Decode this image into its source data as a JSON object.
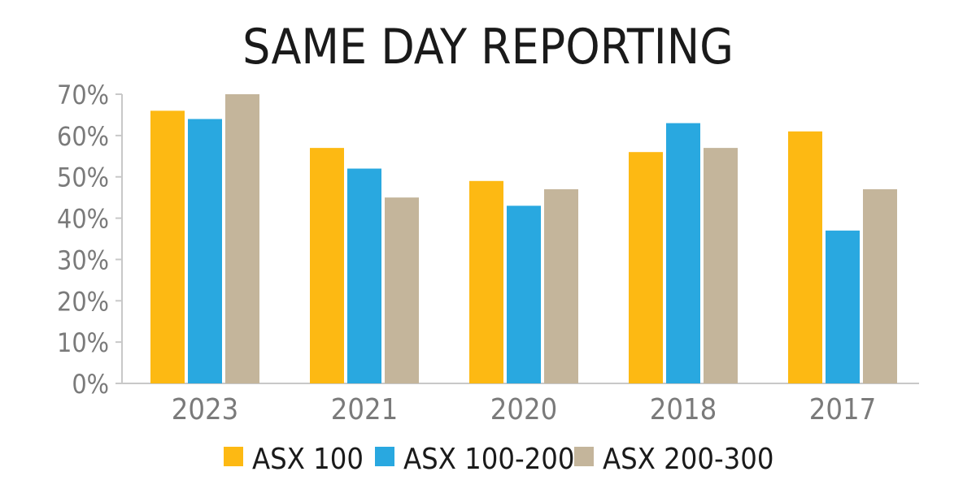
{
  "chart_data": {
    "type": "bar",
    "title": "SAME DAY REPORTING",
    "xlabel": "",
    "ylabel": "",
    "categories": [
      "2023",
      "2021",
      "2020",
      "2018",
      "2017"
    ],
    "series": [
      {
        "name": "ASX 100",
        "color": "#FDB913",
        "values": [
          66,
          57,
          49,
          56,
          61
        ]
      },
      {
        "name": "ASX 100-200",
        "color": "#29A8E0",
        "values": [
          64,
          52,
          43,
          63,
          37
        ]
      },
      {
        "name": "ASX 200-300",
        "color": "#C4B59B",
        "values": [
          70,
          45,
          47,
          57,
          47
        ]
      }
    ],
    "ylim": [
      0,
      70
    ],
    "yticks": [
      0,
      10,
      20,
      30,
      40,
      50,
      60,
      70
    ],
    "ytick_labels": [
      "0%",
      "10%",
      "20%",
      "30%",
      "40%",
      "50%",
      "60%",
      "70%"
    ],
    "grid": false,
    "legend_position": "bottom"
  }
}
